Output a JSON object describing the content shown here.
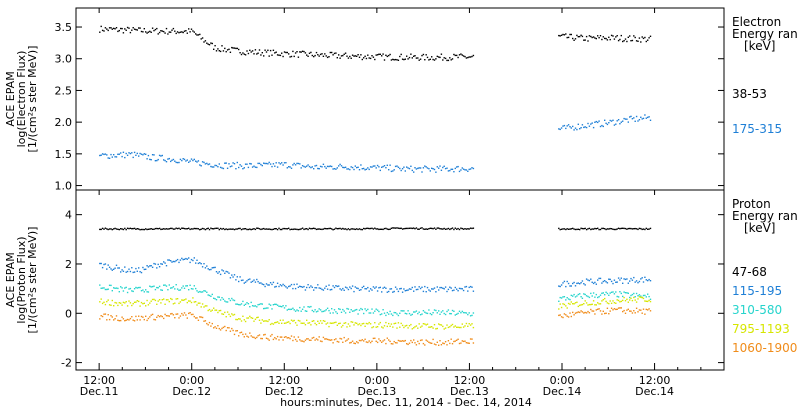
{
  "chart_data": {
    "type": "scatter",
    "x_axis": {
      "title": "hours:minutes, Dec. 11, 2014 - Dec. 14, 2014",
      "range_hours": [
        -3,
        81
      ],
      "ticks": [
        {
          "hour": 0,
          "time": "12:00",
          "date": "Dec.11"
        },
        {
          "hour": 12,
          "time": "0:00",
          "date": "Dec.12"
        },
        {
          "hour": 24,
          "time": "12:00",
          "date": "Dec.12"
        },
        {
          "hour": 36,
          "time": "0:00",
          "date": "Dec.13"
        },
        {
          "hour": 48,
          "time": "12:00",
          "date": "Dec.13"
        },
        {
          "hour": 60,
          "time": "0:00",
          "date": "Dec.14"
        },
        {
          "hour": 72,
          "time": "12:00",
          "date": "Dec.14"
        }
      ]
    },
    "panels": [
      {
        "name": "electron",
        "ylabel_lines": [
          "ACE EPAM",
          "log(Electron Flux)",
          "[1/(cm²s ster MeV)]"
        ],
        "ylim": [
          0.93,
          3.8
        ],
        "yticks": [
          "1.0",
          "1.5",
          "2.0",
          "2.5",
          "3.0",
          "3.5"
        ],
        "ytick_values": [
          1.0,
          1.5,
          2.0,
          2.5,
          3.0,
          3.5
        ],
        "legend_title": [
          "Electron",
          "Energy ran",
          "[keV]"
        ],
        "series": [
          {
            "name": "38-53",
            "color": "#000000",
            "points": [
              [
                0,
                3.48
              ],
              [
                6,
                3.45
              ],
              [
                12,
                3.44
              ],
              [
                13.5,
                3.3
              ],
              [
                15,
                3.18
              ],
              [
                18,
                3.13
              ],
              [
                22,
                3.1
              ],
              [
                26,
                3.08
              ],
              [
                30,
                3.06
              ],
              [
                36,
                3.04
              ],
              [
                42,
                3.03
              ],
              [
                48.5,
                3.04
              ],
              [
                59.5,
                3.36
              ],
              [
                63,
                3.33
              ],
              [
                66,
                3.34
              ],
              [
                71,
                3.32
              ]
            ]
          },
          {
            "name": "175-315",
            "color": "#1e7fd6",
            "points": [
              [
                0,
                1.48
              ],
              [
                4,
                1.5
              ],
              [
                7,
                1.45
              ],
              [
                10,
                1.42
              ],
              [
                12,
                1.38
              ],
              [
                16,
                1.33
              ],
              [
                20,
                1.32
              ],
              [
                24,
                1.34
              ],
              [
                28,
                1.3
              ],
              [
                32,
                1.31
              ],
              [
                36,
                1.29
              ],
              [
                40,
                1.27
              ],
              [
                44,
                1.27
              ],
              [
                48.5,
                1.28
              ],
              [
                59.5,
                1.9
              ],
              [
                63,
                1.96
              ],
              [
                66,
                2.0
              ],
              [
                68,
                2.04
              ],
              [
                71,
                2.08
              ]
            ]
          }
        ]
      },
      {
        "name": "proton",
        "ylabel_lines": [
          "ACE EPAM",
          "log(Proton Flux)",
          "[1/(cm²s ster MeV)]"
        ],
        "ylim": [
          -2.3,
          5.0
        ],
        "yticks": [
          "-2",
          "0",
          "2",
          "4"
        ],
        "ytick_values": [
          -2,
          0,
          2,
          4
        ],
        "legend_title": [
          "Proton",
          "Energy ran",
          "[keV]"
        ],
        "series": [
          {
            "name": "47-68",
            "color": "#000000",
            "points": [
              [
                0,
                3.45
              ],
              [
                6,
                3.45
              ],
              [
                12,
                3.45
              ],
              [
                20,
                3.45
              ],
              [
                28,
                3.45
              ],
              [
                34,
                3.45
              ],
              [
                40,
                3.47
              ],
              [
                48.5,
                3.45
              ],
              [
                59.5,
                3.45
              ],
              [
                71,
                3.45
              ]
            ]
          },
          {
            "name": "115-195",
            "color": "#1e7fd6",
            "points": [
              [
                0,
                2.0
              ],
              [
                3,
                1.8
              ],
              [
                5,
                1.75
              ],
              [
                8,
                2.05
              ],
              [
                12,
                2.2
              ],
              [
                15,
                1.8
              ],
              [
                18,
                1.4
              ],
              [
                22,
                1.2
              ],
              [
                26,
                1.1
              ],
              [
                30,
                1.05
              ],
              [
                34,
                1.0
              ],
              [
                38,
                1.0
              ],
              [
                42,
                1.0
              ],
              [
                45,
                1.0
              ],
              [
                48.5,
                1.0
              ],
              [
                59.5,
                1.2
              ],
              [
                63,
                1.3
              ],
              [
                67,
                1.35
              ],
              [
                71,
                1.4
              ]
            ]
          },
          {
            "name": "310-580",
            "color": "#26d4cc",
            "points": [
              [
                0,
                1.1
              ],
              [
                4,
                0.95
              ],
              [
                8,
                1.05
              ],
              [
                12,
                1.1
              ],
              [
                15,
                0.7
              ],
              [
                18,
                0.45
              ],
              [
                22,
                0.3
              ],
              [
                26,
                0.2
              ],
              [
                30,
                0.15
              ],
              [
                34,
                0.1
              ],
              [
                38,
                0.05
              ],
              [
                42,
                0.05
              ],
              [
                45,
                0.05
              ],
              [
                48.5,
                0.0
              ],
              [
                59.5,
                0.6
              ],
              [
                63,
                0.75
              ],
              [
                67,
                0.8
              ],
              [
                71,
                0.7
              ]
            ]
          },
          {
            "name": "795-1193",
            "color": "#d6e600",
            "points": [
              [
                0,
                0.5
              ],
              [
                4,
                0.4
              ],
              [
                8,
                0.5
              ],
              [
                12,
                0.55
              ],
              [
                15,
                0.1
              ],
              [
                18,
                -0.15
              ],
              [
                22,
                -0.3
              ],
              [
                26,
                -0.35
              ],
              [
                30,
                -0.4
              ],
              [
                34,
                -0.45
              ],
              [
                38,
                -0.45
              ],
              [
                42,
                -0.5
              ],
              [
                45,
                -0.5
              ],
              [
                48.5,
                -0.5
              ],
              [
                59.5,
                0.3
              ],
              [
                63,
                0.45
              ],
              [
                67,
                0.55
              ],
              [
                71,
                0.6
              ]
            ]
          },
          {
            "name": "1060-1900",
            "color": "#f08c1a",
            "points": [
              [
                0,
                -0.1
              ],
              [
                4,
                -0.2
              ],
              [
                8,
                -0.1
              ],
              [
                12,
                -0.05
              ],
              [
                15,
                -0.5
              ],
              [
                18,
                -0.8
              ],
              [
                22,
                -0.95
              ],
              [
                26,
                -1.0
              ],
              [
                30,
                -1.05
              ],
              [
                34,
                -1.1
              ],
              [
                38,
                -1.1
              ],
              [
                42,
                -1.15
              ],
              [
                45,
                -1.15
              ],
              [
                48.5,
                -1.1
              ],
              [
                59.5,
                -0.1
              ],
              [
                63,
                0.05
              ],
              [
                67,
                0.15
              ],
              [
                71,
                0.1
              ]
            ]
          }
        ]
      }
    ]
  }
}
